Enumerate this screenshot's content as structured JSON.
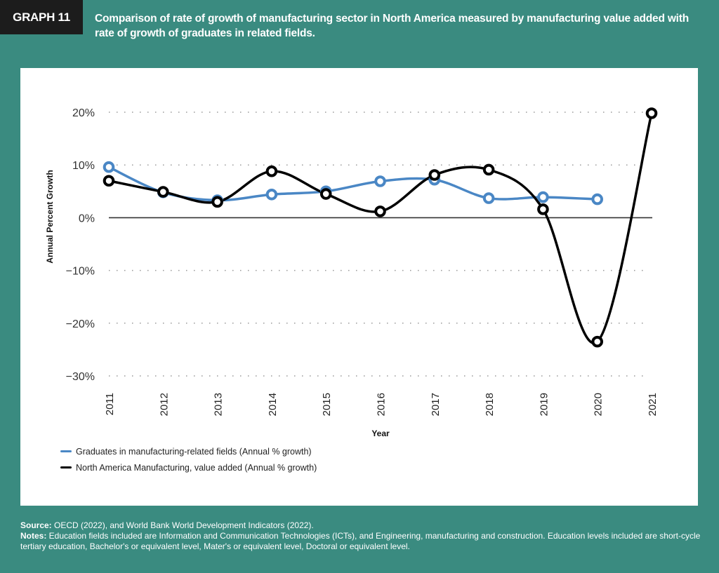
{
  "header": {
    "badge": "GRAPH 11",
    "title": "Comparison of rate of growth of manufacturing sector in North America measured by manufacturing value added with rate of growth of graduates in related fields."
  },
  "colors": {
    "background": "#3a8b80",
    "badge": "#1c1c1c",
    "series_graduates": "#4a87c5",
    "series_manufacturing": "#000000"
  },
  "chart_data": {
    "type": "line",
    "title": "",
    "xlabel": "Year",
    "ylabel": "Annual Percent Growth",
    "x": [
      "2011",
      "2012",
      "2013",
      "2014",
      "2015",
      "2016",
      "2017",
      "2018",
      "2019",
      "2020",
      "2021"
    ],
    "ylim": [
      -30,
      20
    ],
    "yticks": [
      20,
      10,
      0,
      -10,
      -20,
      -30
    ],
    "ytick_labels": [
      "20%",
      "10%",
      "0%",
      "−10%",
      "−20%",
      "−30%"
    ],
    "grid": "horizontal dotted",
    "legend_position": "bottom-left",
    "series": [
      {
        "name": "Graduates in manufacturing-related fields (Annual % growth)",
        "color": "#4a87c5",
        "values": [
          9.6,
          4.8,
          3.3,
          4.4,
          5.0,
          6.9,
          7.2,
          3.7,
          3.9,
          3.5,
          null
        ]
      },
      {
        "name": "North America Manufacturing, value added (Annual % growth)",
        "color": "#000000",
        "values": [
          7.0,
          4.9,
          3.0,
          8.8,
          4.5,
          1.2,
          8.1,
          9.1,
          1.6,
          -23.5,
          19.8
        ]
      }
    ]
  },
  "footer": {
    "source_label": "Source:",
    "source_text": " OECD (2022), and World Bank World Development Indicators (2022).",
    "notes_label": "Notes:",
    "notes_text": " Education fields included are Information and Communication Technologies (ICTs), and Engineering, manufacturing and construction. Education levels  included are short-cycle tertiary education, Bachelor's or equivalent level, Mater's or equivalent level, Doctoral or equivalent level."
  }
}
